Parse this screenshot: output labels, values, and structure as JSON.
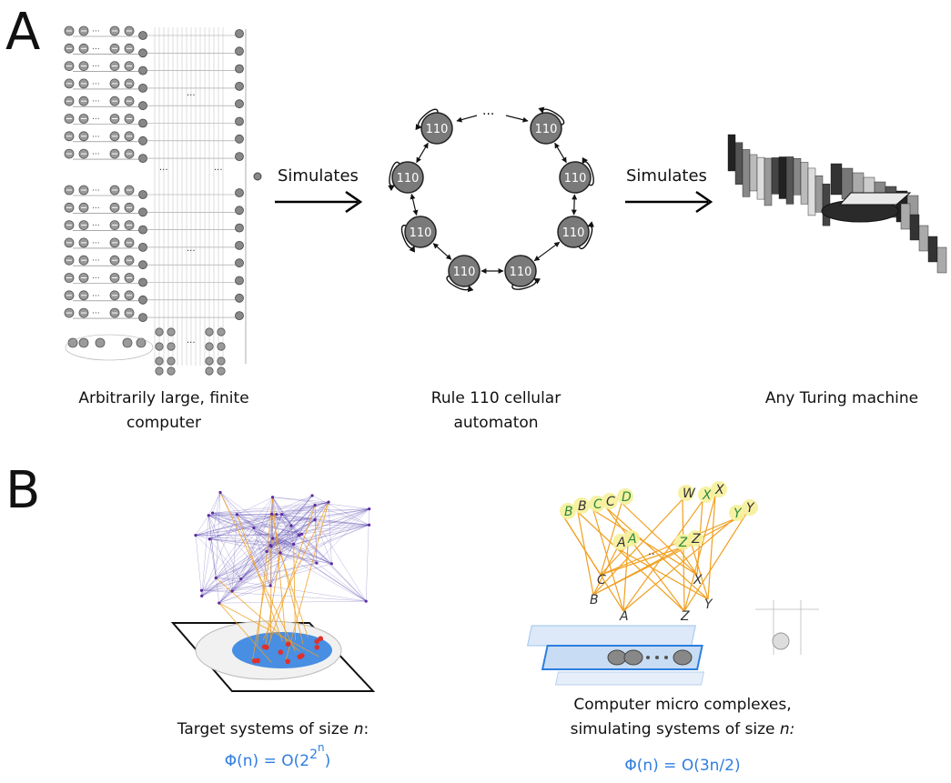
{
  "panel_a": {
    "letter": "A",
    "arrow1_label": "Simulates",
    "arrow2_label": "Simulates",
    "node_label": "110",
    "ellipsis": "···",
    "caption_computer": [
      "Arbitrarily large, finite",
      "computer"
    ],
    "caption_rule110": [
      "Rule 110 cellular",
      "automaton"
    ],
    "caption_turing": "Any Turing machine"
  },
  "panel_b": {
    "letter": "B",
    "caption_target": "Target systems of size",
    "caption_target_var": "n",
    "formula_target": "Φ(n) = O(2",
    "formula_target_exp1": "2",
    "formula_target_exp2": "n",
    "formula_target_close": ")",
    "caption_computer_line1": "Computer micro complexes,",
    "caption_computer_line2": "simulating systems of size",
    "caption_computer_var": "n:",
    "formula_computer": "Φ(n) = O(3n/2)",
    "mech_top_labels": [
      "B",
      "B",
      "C",
      "C",
      "D",
      "A",
      "A",
      "W",
      "X",
      "X",
      "Z",
      "Z",
      "Y",
      "Y"
    ],
    "mech_bottom_labels": [
      "C",
      "B",
      "A",
      "Z",
      "X",
      "Y"
    ],
    "mech_dots": ".."
  },
  "colors": {
    "node_fill": "#7a7a7a",
    "network_edge": "#4b3aa8",
    "highlight_edge": "#f0a020",
    "brain_blue": "#2a7de1",
    "formula_blue": "#2f7de1",
    "label_bubble": "#f6f09a"
  }
}
